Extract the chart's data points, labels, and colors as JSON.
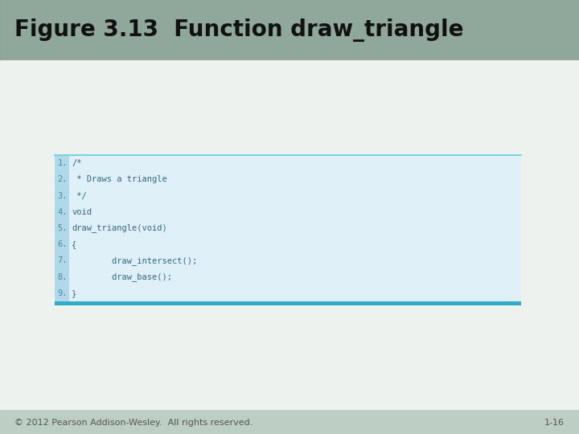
{
  "title": "Figure 3.13  Function draw_triangle",
  "title_fontsize": 20,
  "title_color": "#111111",
  "header_bg_top": "#8fa898",
  "header_bg_bottom": "#c5d4cc",
  "slide_bg_top": "#c5d4cc",
  "slide_bg_bottom": "#e8eeea",
  "code_lines": [
    "/*",
    " * Draws a triangle",
    " */",
    "void",
    "draw_triangle(void)",
    "{",
    "        draw_intersect();",
    "        draw_base();",
    "}"
  ],
  "line_number_bg": "#b0d8e8",
  "line_number_color": "#4488aa",
  "code_bg": "#dff0f8",
  "code_color": "#336688",
  "code_fontsize": 7.5,
  "top_line_color": "#66ccdd",
  "bottom_bar_color": "#33aacc",
  "footer_left": "© 2012 Pearson Addison-Wesley.  All rights reserved.",
  "footer_right": "1-16",
  "footer_fontsize": 8,
  "footer_color": "#555555"
}
